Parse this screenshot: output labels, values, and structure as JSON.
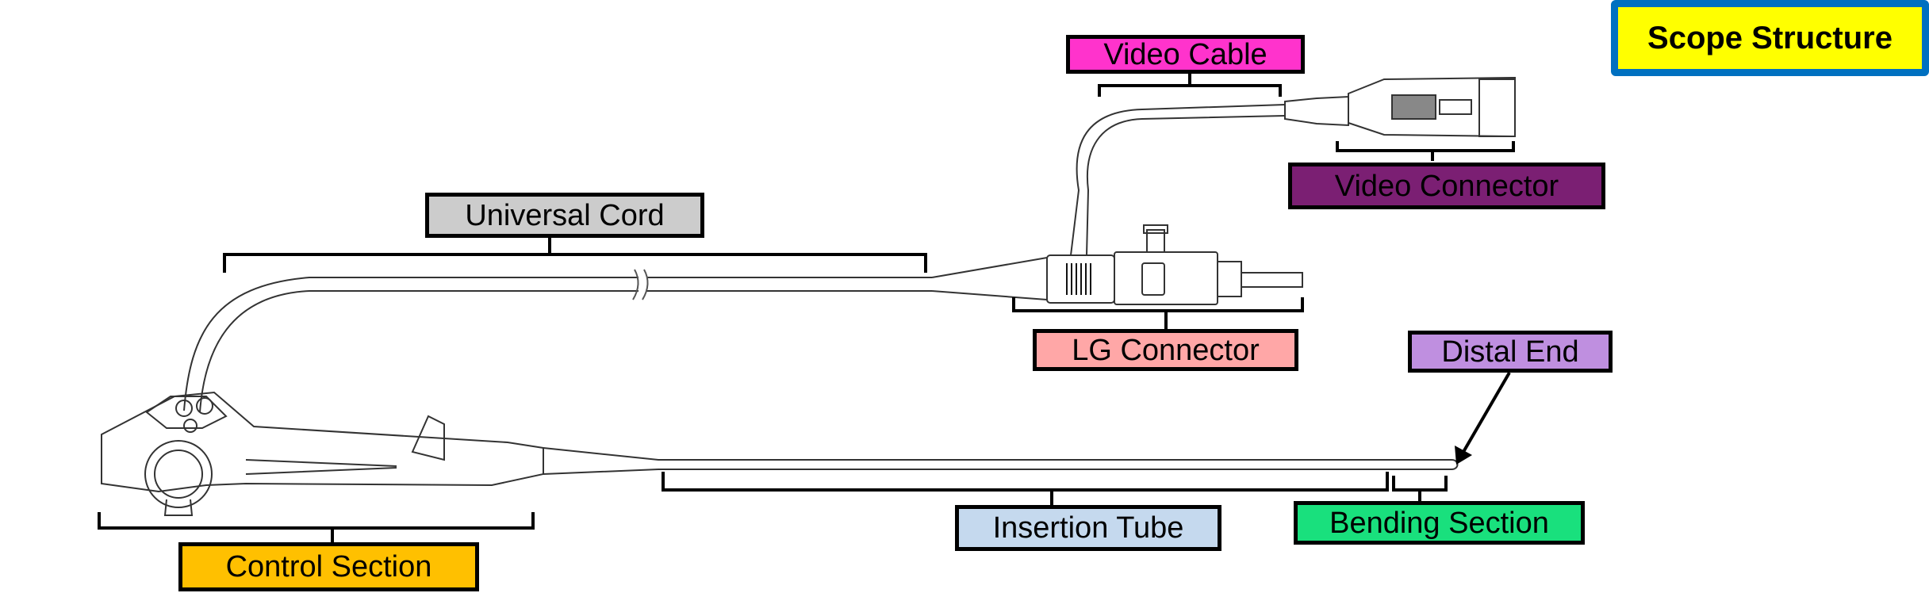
{
  "title": "Scope Structure",
  "colors": {
    "title_bg": "#ffff00",
    "title_border": "#0070c0",
    "video_cable": "#ff33cc",
    "video_connector": "#7b1f73",
    "universal_cord": "#cccccc",
    "lg_connector": "#ffa7a7",
    "distal_end": "#bf8fe0",
    "insertion_tube": "#c5d9ee",
    "bending_section": "#19e07d",
    "control_section": "#ffc000"
  },
  "labels": {
    "video_cable": "Video Cable",
    "video_connector": "Video Connector",
    "universal_cord": "Universal Cord",
    "lg_connector": "LG Connector",
    "distal_end": "Distal End",
    "insertion_tube": "Insertion Tube",
    "bending_section": "Bending Section",
    "control_section": "Control Section"
  }
}
